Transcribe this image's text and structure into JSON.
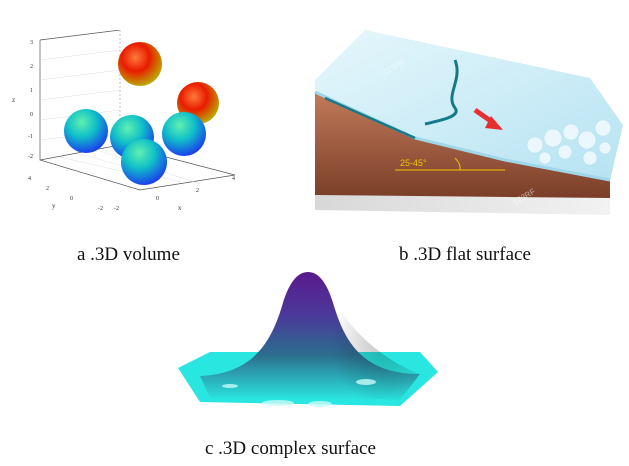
{
  "panels": {
    "a": {
      "caption": "a .3D volume",
      "axis_labels": {
        "z": "z",
        "y": "y",
        "x": "x"
      },
      "z_ticks": [
        "3",
        "2",
        "1",
        "0",
        "-1",
        "-2"
      ],
      "y_ticks": [
        "4",
        "2",
        "0",
        "-2"
      ],
      "x_ticks": [
        "-2",
        "0",
        "2",
        "4"
      ],
      "spheres": [
        {
          "name": "red-top",
          "color_top": "#ff2a00",
          "color_bottom": "#c8c000"
        },
        {
          "name": "red-right",
          "color_top": "#ff2a00",
          "color_bottom": "#c8c000"
        },
        {
          "name": "blue-left",
          "color_top": "#00d0b0",
          "color_bottom": "#2050ff"
        },
        {
          "name": "blue-mid",
          "color_top": "#10e0a0",
          "color_bottom": "#2060ff"
        },
        {
          "name": "blue-right",
          "color_top": "#00d0b0",
          "color_bottom": "#2050ff"
        },
        {
          "name": "blue-front",
          "color_top": "#20e890",
          "color_bottom": "#1e40ff"
        }
      ]
    },
    "b": {
      "caption": "b .3D flat surface",
      "slope_angle_label": "25-45°",
      "watermark": "123RF"
    },
    "c": {
      "caption": "c .3D complex surface",
      "colors": {
        "peak": "#5a1a8c",
        "mid": "#2c6e8e",
        "base": "#2ae6e0"
      }
    }
  }
}
